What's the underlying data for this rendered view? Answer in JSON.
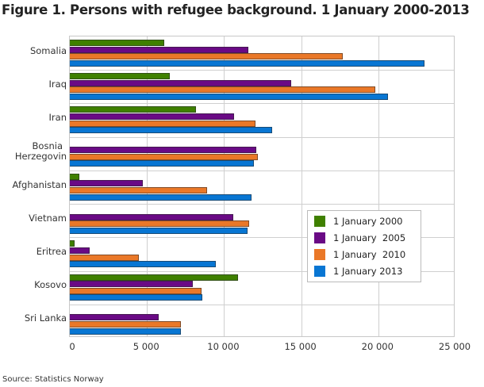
{
  "title": "Figure 1. Persons with refugee background. 1 January 2000-2013",
  "source": "Source: Statistics Norway",
  "chart_data": {
    "type": "bar",
    "orientation": "horizontal",
    "title": "Figure 1. Persons with refugee background. 1 January 2000-2013",
    "xlabel": "",
    "ylabel": "",
    "xlim": [
      0,
      25000
    ],
    "x_ticks": [
      "0",
      "5 000",
      "10 000",
      "15 000",
      "20 000",
      "25 000"
    ],
    "grid": true,
    "legend_position": "inside-right",
    "categories": [
      "Somalia",
      "Iraq",
      "Iran",
      "Bosnia\nHerzegovin",
      "Afghanistan",
      "Vietnam",
      "Eritrea",
      "Kosovo",
      "Sri Lanka"
    ],
    "series": [
      {
        "name": "1 January 2000",
        "color": "#3f8000",
        "values": [
          6100,
          6500,
          8200,
          0,
          600,
          0,
          300,
          10900,
          0
        ]
      },
      {
        "name": "1 January  2005",
        "color": "#6a0a85",
        "values": [
          11550,
          14350,
          10650,
          12100,
          4750,
          10600,
          1300,
          7950,
          5750
        ]
      },
      {
        "name": "1 January  2010",
        "color": "#ea7828",
        "values": [
          17700,
          19800,
          12050,
          12200,
          8900,
          11600,
          4450,
          8550,
          7200
        ]
      },
      {
        "name": "1 January 2013",
        "color": "#0876d3",
        "values": [
          23000,
          20650,
          13100,
          11950,
          11800,
          11500,
          9450,
          8600,
          7200
        ]
      }
    ]
  }
}
